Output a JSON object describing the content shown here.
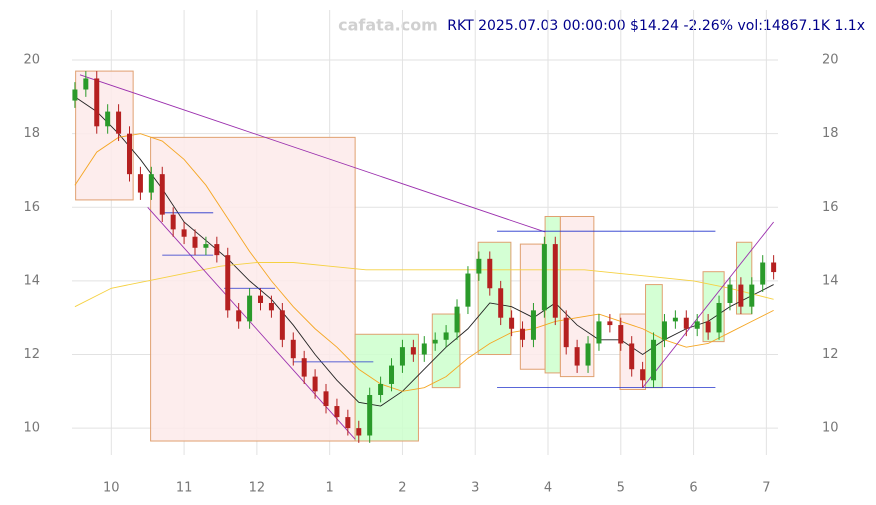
{
  "chart_data": {
    "type": "candlestick",
    "title": "RKT 2025.07.03 00:00:00 $14.24 -2.26% vol:14867.1K 1.1x",
    "watermark": "cafata.com",
    "xlim": [
      9.46,
      19.16
    ],
    "ylim": [
      9.27,
      21.36
    ],
    "xticks": [
      10,
      11,
      12,
      {
        "value": 13,
        "label": "1"
      },
      {
        "value": 14,
        "label": "2"
      },
      {
        "value": 15,
        "label": "3"
      },
      {
        "value": 16,
        "label": "4"
      },
      {
        "value": 17,
        "label": "5"
      },
      {
        "value": 18,
        "label": "6"
      },
      {
        "value": 19,
        "label": "7"
      }
    ],
    "yticks": [
      10,
      12,
      14,
      16,
      18,
      20
    ],
    "grid": true,
    "up_color": "#2a9a2a",
    "down_color": "#b52020",
    "x": [
      9.5,
      9.65,
      9.8,
      9.95,
      10.1,
      10.25,
      10.4,
      10.55,
      10.7,
      10.85,
      11.0,
      11.15,
      11.3,
      11.45,
      11.6,
      11.75,
      11.9,
      12.05,
      12.2,
      12.35,
      12.5,
      12.65,
      12.8,
      12.95,
      13.1,
      13.25,
      13.4,
      13.55,
      13.7,
      13.85,
      14.0,
      14.15,
      14.3,
      14.45,
      14.6,
      14.75,
      14.9,
      15.05,
      15.2,
      15.35,
      15.5,
      15.65,
      15.8,
      15.95,
      16.1,
      16.25,
      16.4,
      16.55,
      16.7,
      16.85,
      17.0,
      17.15,
      17.3,
      17.45,
      17.6,
      17.75,
      17.9,
      18.05,
      18.2,
      18.35,
      18.5,
      18.65,
      18.8,
      18.95,
      19.1
    ],
    "open": [
      18.9,
      19.2,
      19.5,
      18.2,
      18.6,
      18.0,
      16.9,
      16.4,
      16.9,
      15.8,
      15.4,
      15.2,
      14.9,
      15.0,
      14.7,
      13.2,
      12.9,
      13.6,
      13.4,
      13.2,
      12.4,
      11.9,
      11.4,
      11.0,
      10.6,
      10.3,
      10.0,
      9.8,
      10.9,
      11.2,
      11.7,
      12.2,
      12.0,
      12.3,
      12.4,
      12.6,
      13.3,
      14.2,
      14.6,
      13.8,
      13.0,
      12.7,
      12.4,
      13.2,
      15.0,
      13.0,
      12.2,
      11.7,
      12.3,
      12.9,
      12.8,
      12.3,
      11.6,
      11.3,
      12.4,
      12.9,
      13.0,
      12.7,
      12.9,
      12.6,
      13.4,
      13.9,
      13.3,
      13.9,
      14.5
    ],
    "high": [
      19.4,
      19.7,
      19.7,
      18.8,
      18.8,
      18.2,
      17.1,
      17.1,
      17.1,
      16.0,
      15.6,
      15.4,
      15.2,
      15.2,
      14.9,
      13.4,
      13.8,
      13.8,
      13.6,
      13.4,
      12.6,
      12.1,
      11.6,
      11.2,
      10.8,
      10.5,
      10.2,
      11.1,
      11.4,
      11.9,
      12.4,
      12.4,
      12.5,
      12.6,
      12.8,
      13.5,
      14.4,
      14.8,
      14.8,
      14.0,
      13.2,
      12.9,
      13.4,
      15.2,
      15.2,
      13.2,
      12.4,
      12.5,
      13.1,
      13.1,
      13.0,
      12.5,
      11.8,
      12.6,
      13.1,
      13.2,
      13.2,
      13.1,
      13.1,
      13.6,
      14.1,
      14.1,
      14.1,
      14.7,
      14.7
    ],
    "low": [
      18.7,
      19.0,
      18.0,
      18.0,
      17.8,
      16.7,
      16.2,
      16.2,
      15.6,
      15.2,
      15.0,
      14.7,
      14.7,
      14.5,
      13.0,
      12.7,
      12.7,
      13.2,
      13.0,
      12.2,
      11.7,
      11.2,
      10.8,
      10.4,
      10.1,
      9.8,
      9.6,
      9.6,
      10.7,
      11.0,
      11.5,
      11.8,
      11.8,
      12.1,
      12.2,
      12.4,
      13.1,
      14.0,
      13.6,
      12.8,
      12.5,
      12.2,
      12.2,
      13.0,
      12.8,
      12.0,
      11.5,
      11.5,
      12.1,
      12.6,
      12.1,
      11.4,
      11.1,
      11.1,
      12.2,
      12.7,
      12.5,
      12.5,
      12.4,
      12.4,
      13.2,
      13.1,
      13.1,
      13.7,
      14.04
    ],
    "close": [
      19.2,
      19.5,
      18.2,
      18.6,
      18.0,
      16.9,
      16.4,
      16.9,
      15.8,
      15.4,
      15.2,
      14.9,
      15.0,
      14.7,
      13.2,
      12.9,
      13.6,
      13.4,
      13.2,
      12.4,
      11.9,
      11.4,
      11.0,
      10.6,
      10.3,
      10.0,
      9.8,
      10.9,
      11.2,
      11.7,
      12.2,
      12.0,
      12.3,
      12.4,
      12.6,
      13.3,
      14.2,
      14.6,
      13.8,
      13.0,
      12.7,
      12.4,
      13.2,
      15.0,
      13.0,
      12.2,
      11.7,
      12.3,
      12.9,
      12.8,
      12.3,
      11.6,
      11.3,
      12.4,
      12.9,
      13.0,
      12.7,
      12.9,
      12.6,
      13.4,
      13.9,
      13.3,
      13.9,
      14.5,
      14.24
    ],
    "boxes": [
      {
        "x0": 9.51,
        "x1": 10.3,
        "y0": 16.2,
        "y1": 19.7,
        "color": "#fdeaea"
      },
      {
        "x0": 10.54,
        "x1": 13.35,
        "y0": 9.65,
        "y1": 17.9,
        "color": "#fdeaea"
      },
      {
        "x0": 13.35,
        "x1": 14.22,
        "y0": 9.65,
        "y1": 12.55,
        "color": "#ccffcc"
      },
      {
        "x0": 14.41,
        "x1": 14.79,
        "y0": 11.1,
        "y1": 13.1,
        "color": "#ccffcc"
      },
      {
        "x0": 15.04,
        "x1": 15.49,
        "y0": 12.0,
        "y1": 15.05,
        "color": "#ccffcc"
      },
      {
        "x0": 15.62,
        "x1": 15.96,
        "y0": 11.6,
        "y1": 15.0,
        "color": "#fdeaea"
      },
      {
        "x0": 15.96,
        "x1": 16.17,
        "y0": 11.5,
        "y1": 15.75,
        "color": "#ccffcc"
      },
      {
        "x0": 16.17,
        "x1": 16.63,
        "y0": 11.4,
        "y1": 15.75,
        "color": "#fdeaea"
      },
      {
        "x0": 16.99,
        "x1": 17.34,
        "y0": 11.05,
        "y1": 13.1,
        "color": "#fdeaea"
      },
      {
        "x0": 17.34,
        "x1": 17.57,
        "y0": 11.1,
        "y1": 13.9,
        "color": "#ccffcc"
      },
      {
        "x0": 18.13,
        "x1": 18.42,
        "y0": 12.35,
        "y1": 14.25,
        "color": "#ccffcc"
      },
      {
        "x0": 18.59,
        "x1": 18.8,
        "y0": 13.1,
        "y1": 15.05,
        "color": "#ccffcc"
      }
    ],
    "lines": [
      {
        "color": "#222222",
        "x": [
          9.5,
          9.8,
          10.1,
          10.4,
          10.7,
          11.0,
          11.3,
          11.6,
          11.9,
          12.2,
          12.5,
          12.8,
          13.1,
          13.4,
          13.7,
          14.0,
          14.3,
          14.6,
          14.9,
          15.2,
          15.5,
          15.8,
          16.1,
          16.4,
          16.7,
          17.0,
          17.3,
          17.6,
          17.9,
          18.2,
          18.5,
          18.8,
          19.1
        ],
        "values": [
          19.0,
          18.6,
          18.0,
          17.3,
          16.5,
          15.6,
          15.1,
          14.6,
          14.0,
          13.5,
          12.8,
          12.0,
          11.3,
          10.7,
          10.6,
          11.0,
          11.6,
          12.2,
          12.7,
          13.4,
          13.3,
          13.0,
          13.4,
          12.8,
          12.4,
          12.4,
          12.0,
          12.4,
          12.7,
          12.9,
          13.3,
          13.6,
          13.9
        ]
      },
      {
        "color": "#f5a623",
        "x": [
          9.5,
          9.8,
          10.1,
          10.4,
          10.7,
          11.0,
          11.3,
          11.6,
          11.9,
          12.2,
          12.5,
          12.8,
          13.1,
          13.4,
          13.7,
          14.0,
          14.3,
          14.6,
          14.9,
          15.2,
          15.5,
          15.8,
          16.1,
          16.4,
          16.7,
          17.0,
          17.3,
          17.6,
          17.9,
          18.2,
          18.5,
          18.8,
          19.1
        ],
        "values": [
          16.6,
          17.5,
          17.9,
          18.0,
          17.8,
          17.3,
          16.6,
          15.7,
          14.8,
          14.0,
          13.3,
          12.7,
          12.2,
          11.6,
          11.2,
          11.0,
          11.1,
          11.4,
          11.9,
          12.3,
          12.6,
          12.7,
          12.9,
          13.0,
          13.1,
          12.9,
          12.7,
          12.4,
          12.2,
          12.3,
          12.6,
          12.9,
          13.2
        ]
      },
      {
        "color": "#f5d142",
        "x": [
          9.5,
          10.0,
          10.5,
          11.0,
          11.5,
          12.0,
          12.5,
          13.0,
          13.5,
          14.0,
          14.5,
          15.0,
          15.5,
          16.0,
          16.5,
          17.0,
          17.5,
          18.0,
          18.5,
          19.1
        ],
        "values": [
          13.3,
          13.8,
          14.0,
          14.2,
          14.4,
          14.5,
          14.5,
          14.4,
          14.3,
          14.3,
          14.3,
          14.3,
          14.3,
          14.3,
          14.3,
          14.2,
          14.1,
          14.0,
          13.8,
          13.5
        ]
      },
      {
        "color": "#9b2fae",
        "x": [
          9.57,
          15.96
        ],
        "values": [
          19.6,
          15.33
        ]
      },
      {
        "color": "#9b2fae",
        "x": [
          10.5,
          13.35
        ],
        "values": [
          16.0,
          9.7
        ]
      },
      {
        "color": "#9b2fae",
        "x": [
          17.3,
          19.1
        ],
        "values": [
          11.1,
          15.6
        ]
      }
    ],
    "levels": [
      {
        "x0": 10.7,
        "x1": 11.4,
        "y": 15.85
      },
      {
        "x0": 10.7,
        "x1": 11.4,
        "y": 14.7
      },
      {
        "x0": 11.55,
        "x1": 12.25,
        "y": 13.8
      },
      {
        "x0": 12.5,
        "x1": 13.6,
        "y": 11.8
      },
      {
        "x0": 15.3,
        "x1": 18.3,
        "y": 15.35
      },
      {
        "x0": 15.3,
        "x1": 18.3,
        "y": 11.1
      }
    ]
  }
}
